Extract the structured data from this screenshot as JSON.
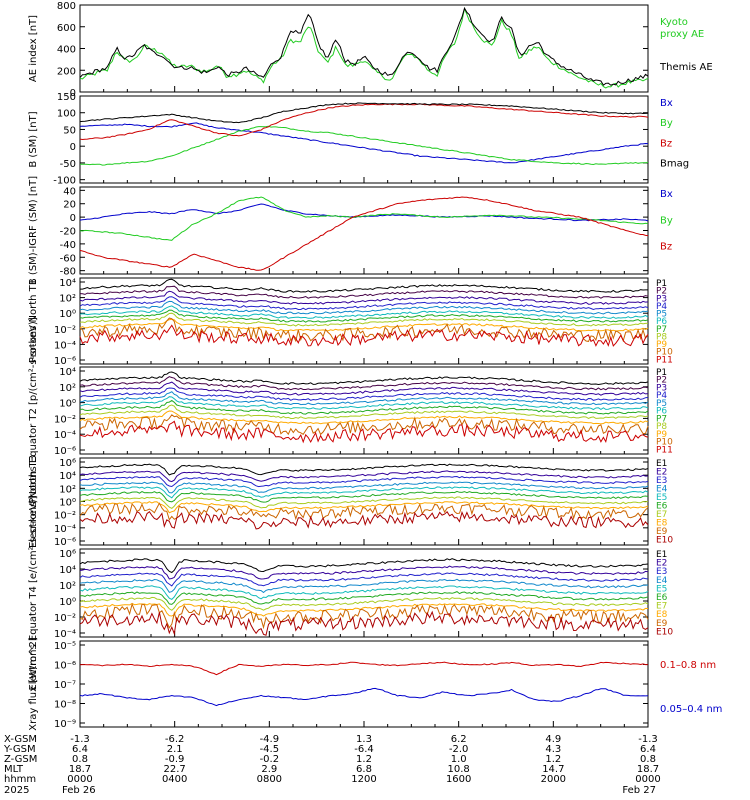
{
  "chart_data": [
    {
      "type": "line",
      "ylabel": "AE index [nT]",
      "yticks": [
        "800",
        "600",
        "400",
        "200",
        "0"
      ],
      "ylim": [
        0,
        800
      ],
      "series": [
        {
          "name": "Kyoto proxy AE",
          "color": "#22cc22",
          "values": [
            120,
            150,
            180,
            200,
            380,
            280,
            300,
            420,
            390,
            360,
            250,
            230,
            240,
            200,
            190,
            250,
            150,
            160,
            200,
            150,
            100,
            250,
            310,
            480,
            450,
            620,
            380,
            260,
            420,
            240,
            250,
            300,
            200,
            150,
            100,
            280,
            360,
            300,
            200,
            160,
            350,
            460,
            760,
            590,
            480,
            420,
            650,
            550,
            300,
            380,
            420,
            300,
            250,
            200,
            150,
            120,
            80,
            60,
            50,
            70,
            90,
            100,
            110
          ]
        },
        {
          "name": "Themis AE",
          "color": "#000000",
          "values": [
            140,
            170,
            200,
            220,
            400,
            300,
            350,
            430,
            360,
            340,
            250,
            220,
            230,
            190,
            180,
            240,
            160,
            170,
            220,
            170,
            130,
            270,
            330,
            580,
            520,
            720,
            450,
            300,
            500,
            280,
            260,
            320,
            230,
            180,
            140,
            300,
            380,
            320,
            220,
            200,
            380,
            520,
            780,
            620,
            520,
            460,
            680,
            600,
            330,
            420,
            460,
            330,
            270,
            220,
            180,
            140,
            100,
            80,
            70,
            90,
            110,
            130,
            150
          ]
        }
      ],
      "legend": [
        "Kyoto",
        "proxy AE",
        "Themis AE"
      ]
    },
    {
      "type": "line",
      "ylabel": "B (SM) [nT]",
      "yticks": [
        "150",
        "100",
        "50",
        "0",
        "-50",
        "-100"
      ],
      "ylim": [
        -110,
        150
      ],
      "series": [
        {
          "name": "Bx",
          "color": "#0000cc",
          "values": [
            60,
            62,
            65,
            60,
            58,
            70,
            55,
            48,
            40,
            30,
            20,
            10,
            0,
            -10,
            -20,
            -30,
            -35,
            -40,
            -45,
            -50,
            -40,
            -30,
            -20,
            -10,
            0,
            8
          ]
        },
        {
          "name": "By",
          "color": "#22cc22",
          "values": [
            -55,
            -55,
            -50,
            -45,
            -30,
            -5,
            20,
            45,
            60,
            55,
            45,
            40,
            30,
            20,
            10,
            0,
            -10,
            -20,
            -30,
            -40,
            -45,
            -50,
            -52,
            -55,
            -50,
            -50
          ]
        },
        {
          "name": "Bz",
          "color": "#cc0000",
          "values": [
            20,
            25,
            35,
            50,
            80,
            60,
            40,
            30,
            50,
            80,
            100,
            115,
            122,
            125,
            125,
            125,
            122,
            120,
            115,
            110,
            105,
            100,
            95,
            90,
            88,
            88
          ]
        },
        {
          "name": "Bmag",
          "color": "#000000",
          "values": [
            75,
            80,
            85,
            90,
            95,
            85,
            75,
            70,
            85,
            105,
            115,
            125,
            128,
            128,
            127,
            126,
            125,
            125,
            123,
            120,
            115,
            110,
            105,
            100,
            98,
            98
          ]
        }
      ]
    },
    {
      "type": "line",
      "ylabel": "B (SM)-IGRF (SM) [nT]",
      "yticks": [
        "40",
        "20",
        "0",
        "-20",
        "-40",
        "-60",
        "-80"
      ],
      "ylim": [
        -85,
        45
      ],
      "series": [
        {
          "name": "Bx",
          "color": "#0000cc",
          "values": [
            -5,
            0,
            5,
            8,
            5,
            12,
            5,
            10,
            20,
            10,
            5,
            2,
            0,
            2,
            3,
            2,
            0,
            1,
            2,
            0,
            -2,
            -3,
            -5,
            -4,
            -3,
            -5
          ]
        },
        {
          "name": "By",
          "color": "#22cc22",
          "values": [
            -20,
            -22,
            -25,
            -30,
            -35,
            -10,
            5,
            25,
            30,
            10,
            0,
            2,
            0,
            3,
            5,
            2,
            0,
            1,
            3,
            2,
            0,
            -1,
            -3,
            -5,
            -8,
            -10
          ]
        },
        {
          "name": "Bz",
          "color": "#cc0000",
          "values": [
            -50,
            -60,
            -65,
            -70,
            -75,
            -55,
            -65,
            -75,
            -80,
            -60,
            -40,
            -20,
            0,
            10,
            20,
            25,
            28,
            30,
            25,
            18,
            10,
            5,
            0,
            -10,
            -20,
            -28
          ]
        }
      ]
    },
    {
      "type": "line",
      "ylabel": "Protons North T1",
      "yticks": [
        "10⁴",
        "10²",
        "10⁰",
        "10⁻²",
        "10⁻⁴",
        "10⁻⁶"
      ],
      "ylim": [
        -6.5,
        5
      ],
      "channels": [
        "P1",
        "P2",
        "P3",
        "P4",
        "P5",
        "P6",
        "P7",
        "P8",
        "P9",
        "P10",
        "P11"
      ],
      "channel_colors": [
        "#000000",
        "#440044",
        "#330099",
        "#2222cc",
        "#1188cc",
        "#11bbbb",
        "#22aa22",
        "#aacc22",
        "#ffaa00",
        "#cc6600",
        "#cc0000"
      ],
      "levels": [
        3.6,
        2.8,
        2.0,
        1.3,
        0.7,
        0.1,
        -0.4,
        -0.9,
        -1.6,
        -2.3,
        -3.0
      ]
    },
    {
      "type": "line",
      "ylabel": "Protons Equator T2 [p/(cm²-s-sr-keV)]",
      "yticks": [
        "10⁴",
        "10²",
        "10⁰",
        "10⁻²",
        "10⁻⁴",
        "10⁻⁶"
      ],
      "ylim": [
        -6.5,
        5
      ],
      "channels": [
        "P1",
        "P2",
        "P3",
        "P4",
        "P5",
        "P6",
        "P7",
        "P8",
        "P9",
        "P10",
        "P11"
      ],
      "channel_colors": [
        "#000000",
        "#440044",
        "#330099",
        "#2222cc",
        "#1188cc",
        "#11bbbb",
        "#22aa22",
        "#aacc22",
        "#ffaa00",
        "#cc6600",
        "#cc0000"
      ],
      "levels": [
        3.2,
        2.5,
        1.8,
        1.1,
        0.5,
        -0.1,
        -0.7,
        -1.3,
        -2.0,
        -2.8,
        -3.8
      ]
    },
    {
      "type": "line",
      "ylabel": "Electrons North T3",
      "yticks": [
        "10⁶",
        "10⁴",
        "10²",
        "10⁰",
        "10⁻²",
        "10⁻⁴",
        "10⁻⁶"
      ],
      "ylim": [
        -6.5,
        6.2
      ],
      "channels": [
        "E1",
        "E2",
        "E3",
        "E4",
        "E5",
        "E6",
        "E7",
        "E8",
        "E9",
        "E10"
      ],
      "channel_colors": [
        "#000000",
        "#330099",
        "#2222cc",
        "#1188cc",
        "#11bbbb",
        "#22aa22",
        "#aacc22",
        "#ffaa00",
        "#cc6600",
        "#aa0000"
      ],
      "levels": [
        4.8,
        3.8,
        3.0,
        2.2,
        1.5,
        0.8,
        0.0,
        -0.7,
        -1.5,
        -2.8
      ]
    },
    {
      "type": "line",
      "ylabel": "Electrons Equator T4 [e/(cm²-s-sr-keV)]",
      "yticks": [
        "10⁶",
        "10⁴",
        "10²",
        "10⁰",
        "10⁻²",
        "10⁻⁴"
      ],
      "ylim": [
        -4.5,
        6.2
      ],
      "channels": [
        "E1",
        "E2",
        "E3",
        "E4",
        "E5",
        "E6",
        "E7",
        "E8",
        "E9",
        "E10"
      ],
      "channel_colors": [
        "#000000",
        "#330099",
        "#2222cc",
        "#1188cc",
        "#11bbbb",
        "#22aa22",
        "#aacc22",
        "#ffaa00",
        "#cc6600",
        "#aa0000"
      ],
      "levels": [
        4.5,
        3.6,
        2.8,
        2.0,
        1.2,
        0.5,
        -0.2,
        -0.9,
        -1.6,
        -2.6
      ]
    },
    {
      "type": "line",
      "ylabel": "Xray flux [W/m^2]",
      "yticks": [
        "10⁻⁵",
        "10⁻⁶",
        "10⁻⁷",
        "10⁻⁸",
        "10⁻⁹"
      ],
      "ylim": [
        -9.2,
        -4.8
      ],
      "series": [
        {
          "name": "0.1–0.8 nm",
          "color": "#cc0000",
          "values": [
            -6.0,
            -6.05,
            -6.0,
            -6.1,
            -6.0,
            -6.1,
            -6.5,
            -6.0,
            -6.1,
            -6.0,
            -6.05,
            -6.0,
            -5.9,
            -6.0,
            -6.05,
            -5.95,
            -5.9,
            -6.0,
            -6.0,
            -5.9,
            -6.05,
            -6.0,
            -6.1,
            -5.9,
            -5.95,
            -6.0
          ]
        },
        {
          "name": "0.05–0.4 nm",
          "color": "#0000cc",
          "values": [
            -7.6,
            -7.5,
            -7.7,
            -7.8,
            -7.6,
            -7.7,
            -8.1,
            -7.8,
            -7.6,
            -7.7,
            -7.8,
            -7.6,
            -7.5,
            -7.2,
            -7.6,
            -7.7,
            -7.4,
            -7.6,
            -7.5,
            -7.3,
            -7.8,
            -7.9,
            -7.6,
            -7.2,
            -7.6,
            -7.6
          ]
        }
      ]
    }
  ],
  "orbit_table": {
    "row_labels": [
      "X-GSM",
      "Y-GSM",
      "Z-GSM",
      "MLT",
      "hhmm",
      "2025"
    ],
    "columns": [
      [
        "-1.3",
        "6.4",
        "0.8",
        "18.7",
        "0000",
        "Feb 26"
      ],
      [
        "-6.2",
        "2.1",
        "-0.9",
        "22.7",
        "0400",
        ""
      ],
      [
        "-4.9",
        "-4.5",
        "-0.2",
        "2.9",
        "0800",
        ""
      ],
      [
        "1.3",
        "-6.4",
        "1.2",
        "6.8",
        "1200",
        ""
      ],
      [
        "6.2",
        "-2.0",
        "1.0",
        "10.8",
        "1600",
        ""
      ],
      [
        "4.9",
        "4.3",
        "1.2",
        "14.7",
        "2000",
        ""
      ],
      [
        "-1.3",
        "6.4",
        "0.8",
        "18.7",
        "0000",
        "Feb 27"
      ]
    ]
  }
}
